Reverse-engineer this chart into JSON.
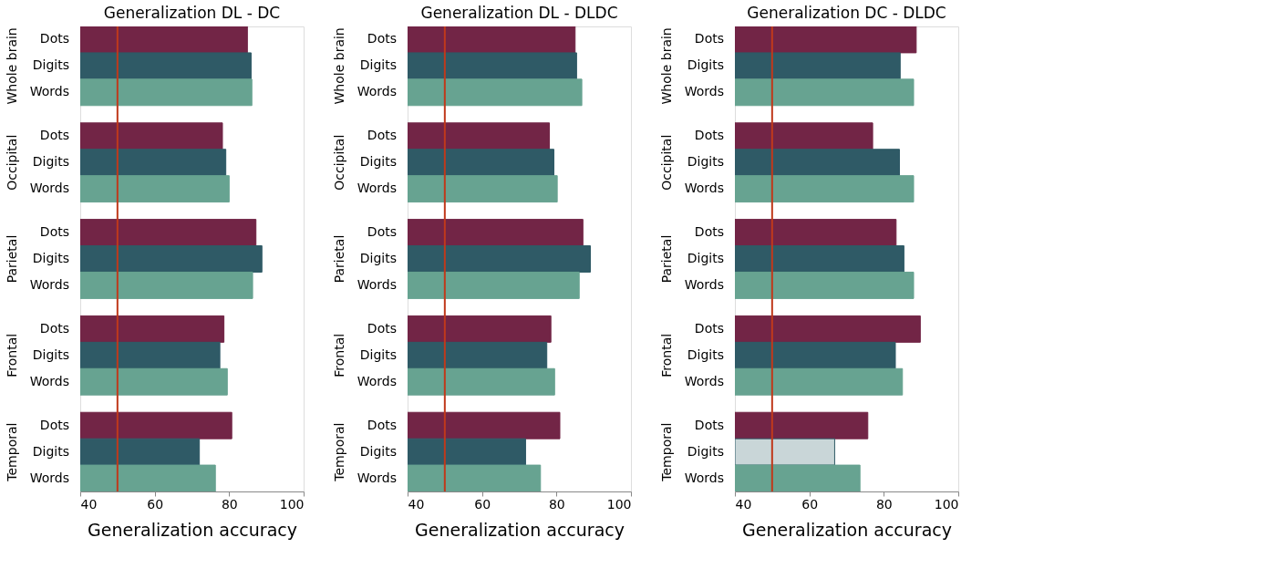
{
  "chart_data": [
    {
      "type": "bar",
      "orientation": "horizontal",
      "title": "Generalization DL - DC",
      "xlabel": "Generalization accuracy",
      "categories": [
        "Whole brain",
        "Occipital",
        "Parietal",
        "Frontal",
        "Temporal"
      ],
      "series": [
        {
          "name": "Dots",
          "color": "#722546",
          "values": [
            84.9,
            78.2,
            87.2,
            78.6,
            80.7
          ]
        },
        {
          "name": "Digits",
          "color": "#2f5a66",
          "values": [
            85.9,
            79.1,
            88.8,
            77.5,
            72.0
          ]
        },
        {
          "name": "Words",
          "color": "#67a391",
          "values": [
            86.1,
            80.0,
            86.3,
            79.5,
            76.3
          ]
        }
      ],
      "xlim": [
        40,
        100
      ],
      "xticks": [
        40,
        60,
        80,
        100
      ],
      "ref_lines": [
        {
          "axis": "x",
          "value": 50,
          "color": "#c0391b"
        }
      ]
    },
    {
      "type": "bar",
      "orientation": "horizontal",
      "title": "Generalization DL - DLDC",
      "xlabel": "Generalization accuracy",
      "categories": [
        "Whole brain",
        "Occipital",
        "Parietal",
        "Frontal",
        "Temporal"
      ],
      "series": [
        {
          "name": "Dots",
          "color": "#722546",
          "values": [
            85.0,
            78.1,
            87.1,
            78.5,
            80.9
          ]
        },
        {
          "name": "Digits",
          "color": "#2f5a66",
          "values": [
            85.4,
            79.3,
            89.1,
            77.4,
            71.7
          ]
        },
        {
          "name": "Words",
          "color": "#67a391",
          "values": [
            86.8,
            80.2,
            86.1,
            79.5,
            75.7
          ]
        }
      ],
      "xlim": [
        40,
        100
      ],
      "xticks": [
        40,
        60,
        80,
        100
      ],
      "ref_lines": [
        {
          "axis": "x",
          "value": 50,
          "color": "#c0391b"
        }
      ]
    },
    {
      "type": "bar",
      "orientation": "horizontal",
      "title": "Generalization DC - DLDC",
      "xlabel": "Generalization accuracy",
      "categories": [
        "Whole brain",
        "Occipital",
        "Parietal",
        "Frontal",
        "Temporal"
      ],
      "series": [
        {
          "name": "Dots",
          "color": "#722546",
          "values": [
            88.7,
            77.0,
            83.3,
            89.8,
            75.7
          ]
        },
        {
          "name": "Digits",
          "color": "#2f5a66",
          "colors": [
            "#2f5a66",
            "#2f5a66",
            "#2f5a66",
            "#2f5a66",
            "#c9d6d8"
          ],
          "values": [
            84.4,
            84.2,
            85.4,
            83.1,
            66.8
          ]
        },
        {
          "name": "Words",
          "color": "#67a391",
          "values": [
            88.0,
            88.0,
            88.0,
            85.0,
            73.6
          ]
        }
      ],
      "xlim": [
        40,
        100
      ],
      "xticks": [
        40,
        60,
        80,
        100
      ],
      "ref_lines": [
        {
          "axis": "x",
          "value": 50,
          "color": "#c0391b"
        }
      ]
    }
  ]
}
